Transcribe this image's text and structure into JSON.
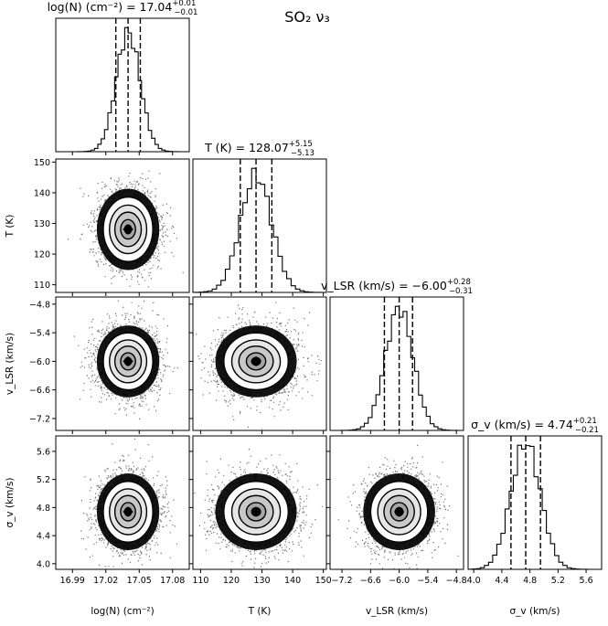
{
  "figure_title": "SO₂ ν₃",
  "chart_data": {
    "type": "corner",
    "params": [
      {
        "id": "logN",
        "title": "log(N) (cm⁻²) = 17.04",
        "title_sup": "+0.01",
        "title_sub": "−0.01",
        "xlabel": "log(N) (cm⁻²)",
        "range": [
          16.975,
          17.095
        ],
        "median": 17.04,
        "q_lo": 17.029,
        "q_hi": 17.051,
        "sd": 0.0108,
        "ticks": [
          16.99,
          17.02,
          17.05,
          17.08
        ],
        "ticklabels": [
          "16.99",
          "17.02",
          "17.05",
          "17.08"
        ]
      },
      {
        "id": "T",
        "title": "T (K) = 128.07",
        "title_sup": "+5.15",
        "title_sub": "−5.13",
        "xlabel": "T (K)",
        "ylabel": "T (K)",
        "range": [
          107.5,
          151
        ],
        "median": 128.07,
        "q_lo": 122.94,
        "q_hi": 133.22,
        "sd": 5.1,
        "ticks": [
          110,
          120,
          130,
          140,
          150
        ],
        "ticklabels": [
          "110",
          "120",
          "130",
          "140",
          "150"
        ]
      },
      {
        "id": "vlsr",
        "title": "v_LSR (km/s) = −6.00",
        "title_sup": "+0.28",
        "title_sub": "−0.31",
        "xlabel": "v_LSR (km/s)",
        "ylabel": "v_LSR (km/s)",
        "range": [
          -7.45,
          -4.65
        ],
        "median": -6.0,
        "q_lo": -6.31,
        "q_hi": -5.72,
        "sd": 0.29,
        "ticks": [
          -7.2,
          -6.6,
          -6.0,
          -5.4,
          -4.8
        ],
        "ticklabels": [
          "−7.2",
          "−6.6",
          "−6.0",
          "−5.4",
          "−4.8"
        ]
      },
      {
        "id": "sigma",
        "title": "σ_v (km/s) = 4.74",
        "title_sup": "+0.21",
        "title_sub": "−0.21",
        "xlabel": "σ_v (km/s)",
        "ylabel": "σ_v (km/s)",
        "range": [
          3.92,
          5.82
        ],
        "median": 4.74,
        "q_lo": 4.53,
        "q_hi": 4.95,
        "sd": 0.21,
        "ticks": [
          4.0,
          4.4,
          4.8,
          5.2,
          5.6
        ],
        "ticklabels": [
          "4.0",
          "4.4",
          "4.8",
          "5.2",
          "5.6"
        ]
      }
    ],
    "histogram_bins": 30,
    "colors": {
      "axes": "#000000",
      "scatter": "#000000",
      "fill_light": "#ffffff",
      "fill_dark": "#8a8a8a"
    }
  }
}
